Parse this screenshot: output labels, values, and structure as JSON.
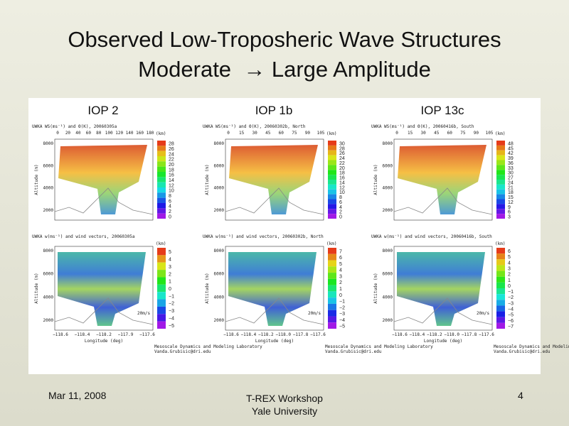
{
  "header": {
    "title_line1": "Observed Low-Troposheric Wave Structures",
    "title_line2": "Moderate  → Large Amplitude"
  },
  "axis_labels": {
    "altitude": "Altitude (m)",
    "longitude": "Longitude (deg)",
    "km": "(km)",
    "vector_scale": "20m/s"
  },
  "credit": {
    "line1": "Mesoscale Dynamics and Modeling Laboratory",
    "line2": "Vanda.Grubisic@dri.edu"
  },
  "altitude_ticks": [
    "2000",
    "4000",
    "6000",
    "8000"
  ],
  "panels": [
    {
      "label": "IOP 2",
      "top": {
        "title": "UWKA WS(ms⁻¹) and Θ(K), 20060305a",
        "km_ticks": [
          "0",
          "20",
          "40",
          "60",
          "80",
          "100",
          "120",
          "140",
          "160",
          "180"
        ],
        "colorbar": [
          "28",
          "26",
          "24",
          "22",
          "20",
          "18",
          "16",
          "14",
          "12",
          "10",
          "8",
          "6",
          "4",
          "2",
          "0"
        ]
      },
      "bottom": {
        "title": "UWKA w(ms⁻¹) and wind vectors, 20060305a",
        "colorbar": [
          "5",
          "4",
          "3",
          "2",
          "1",
          "0",
          "−1",
          "−2",
          "−3",
          "−4",
          "−5"
        ],
        "lon_ticks": [
          "−118.6",
          "−118.4",
          "−118.2",
          "−117.9",
          "−117.6"
        ]
      }
    },
    {
      "label": "IOP 1b",
      "top": {
        "title": "UWKA WS(ms⁻¹) and Θ(K), 20060302b, North",
        "km_ticks": [
          "0",
          "15",
          "30",
          "45",
          "60",
          "75",
          "90",
          "105"
        ],
        "colorbar": [
          "30",
          "28",
          "26",
          "24",
          "22",
          "20",
          "18",
          "16",
          "14",
          "12",
          "10",
          "8",
          "6",
          "4",
          "2",
          "0"
        ]
      },
      "bottom": {
        "title": "UWKA w(ms⁻¹) and wind vectors, 20060302b, North",
        "colorbar": [
          "7",
          "6",
          "5",
          "4",
          "3",
          "2",
          "1",
          "0",
          "−1",
          "−2",
          "−3",
          "−4",
          "−5"
        ],
        "lon_ticks": [
          "−118.6",
          "−118.4",
          "−118.2",
          "−118.0",
          "−117.8",
          "−117.6"
        ]
      }
    },
    {
      "label": "IOP 13c",
      "top": {
        "title": "UWKA WS(ms⁻¹) and Θ(K), 20060416b, South",
        "km_ticks": [
          "0",
          "15",
          "30",
          "45",
          "60",
          "75",
          "90",
          "105"
        ],
        "colorbar": [
          "48",
          "45",
          "42",
          "39",
          "36",
          "33",
          "30",
          "27",
          "24",
          "21",
          "18",
          "15",
          "12",
          "9",
          "6",
          "3"
        ]
      },
      "bottom": {
        "title": "UWKA w(ms⁻¹) and wind vectors, 20060416b, South",
        "colorbar": [
          "6",
          "5",
          "4",
          "3",
          "2",
          "1",
          "0",
          "−1",
          "−2",
          "−3",
          "−4",
          "−5",
          "−6",
          "−7"
        ],
        "lon_ticks": [
          "−118.6",
          "−118.4",
          "−118.2",
          "−118.0",
          "−117.8",
          "−117.6"
        ]
      }
    }
  ],
  "footer": {
    "date": "Mar 11, 2008",
    "event_line1": "T-REX Workshop",
    "event_line2": "Yale University",
    "page": "4"
  }
}
